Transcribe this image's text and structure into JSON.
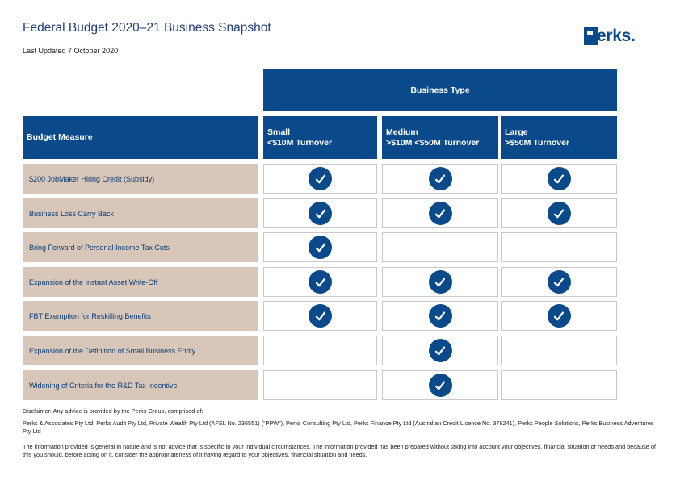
{
  "header": {
    "title": "Federal Budget 2020–21 Business Snapshot",
    "last_updated": "Last Updated 7 October 2020",
    "logo_text": "erks."
  },
  "table": {
    "group_header": "Business Type",
    "measure_header": "Budget Measure",
    "columns": [
      {
        "line1": "Small",
        "line2": "<$10M Turnover"
      },
      {
        "line1": "Medium",
        "line2": ">$10M <$50M Turnover"
      },
      {
        "line1": "Large",
        "line2": ">$50M Turnover"
      }
    ],
    "rows": [
      {
        "label": "$200 JobMaker Hiring Credit (Subsidy)",
        "small": true,
        "medium": true,
        "large": true
      },
      {
        "label": "Business Loss Carry Back",
        "small": true,
        "medium": true,
        "large": true
      },
      {
        "label": "Bring Forward of Personal Income Tax Cuts",
        "small": true,
        "medium": false,
        "large": false
      },
      {
        "label": "Expansion of the Instant Asset Write-Off",
        "small": true,
        "medium": true,
        "large": true
      },
      {
        "label": "FBT Exemption for Reskilling Benefits",
        "small": true,
        "medium": true,
        "large": true
      },
      {
        "label": "Expansion of the Definition of Small Business Entity",
        "small": false,
        "medium": true,
        "large": false
      },
      {
        "label": "Widening of Criteria for the R&D Tax Incentive",
        "small": false,
        "medium": true,
        "large": false
      }
    ],
    "check_icon": "check-circle-icon"
  },
  "footer": {
    "disclaimer": "Disclaimer: Any advice is provided by the Perks Group, comprised of:",
    "entities": "Perks & Associates Pty Ltd, Perks Audit Pty Ltd, Private Wealth Pty Ltd (AFSL No. 236551) (“PPW”), Perks Consulting Pty Ltd, Perks Finance Pty Ltd (Australian Credit Licence No. 378241), Perks People Solutions, Perks Business Adventures Pty Ltd",
    "general_info": "The information provided is general in nature and is not advice that is specific to your individual circumstances. The information provided has been prepared without taking into account your objectives, financial situation or needs and because of this you should, before acting on it, consider the appropriateness of it having regard to your objectives, financial situation and needs."
  },
  "colors": {
    "brand_blue": "#0b4a8a",
    "title_blue": "#1f3f7a",
    "row_label_bg": "#d8c6b8"
  }
}
